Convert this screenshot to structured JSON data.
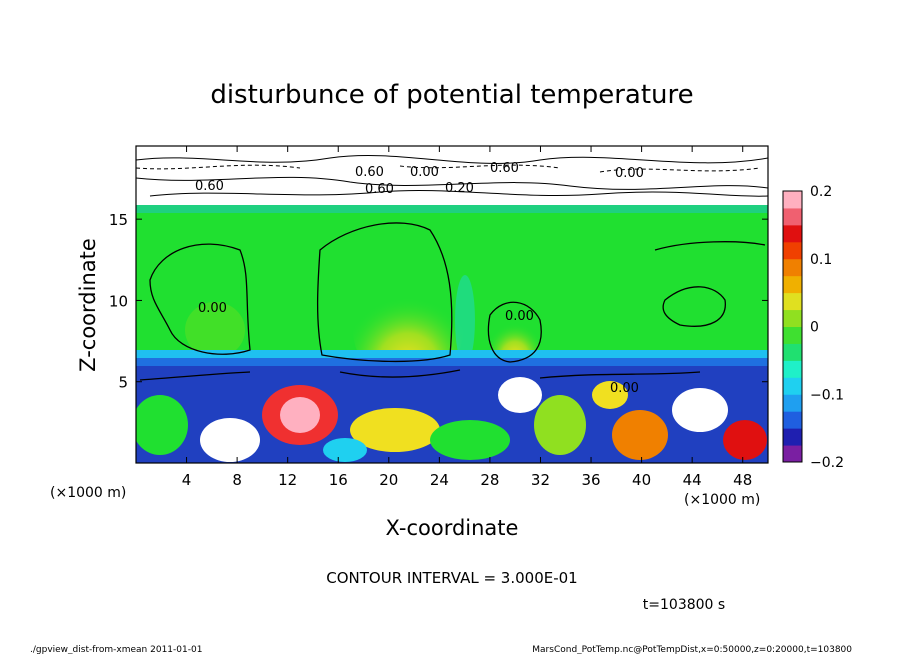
{
  "chart_data": {
    "type": "heatmap",
    "title": "disturbunce of potential temperature",
    "xlabel": "X-coordinate",
    "ylabel": "Z-coordinate",
    "x_unit": "(×1000 m)",
    "y_unit": "(×1000 m)",
    "xlim": [
      0,
      50
    ],
    "ylim": [
      0,
      19.5
    ],
    "x_ticks": [
      "4",
      "8",
      "12",
      "16",
      "20",
      "24",
      "28",
      "32",
      "36",
      "40",
      "44",
      "48"
    ],
    "y_ticks": [
      "5",
      "10",
      "15"
    ],
    "colorbar": {
      "range": [
        -0.2,
        0.2
      ],
      "tick_labels": [
        "0.2",
        "0.1",
        "0",
        "−0.1",
        "−0.2"
      ],
      "colors": [
        "#7a1fa2",
        "#1f1fb0",
        "#1f5fe0",
        "#1f9ff0",
        "#1fd0f0",
        "#1ff0c8",
        "#20e070",
        "#3fe030",
        "#90e020",
        "#e0e020",
        "#f0b000",
        "#f08000",
        "#f04000",
        "#e01010",
        "#f06070",
        "#ffb0c0"
      ]
    },
    "contour_labels": [
      "0.00",
      "0.00",
      "0.00",
      "0.60",
      "0.00",
      "0.60",
      "0.60",
      "0.20",
      "0.60",
      "0.00"
    ],
    "contour_interval": "CONTOUR INTERVAL = 3.000E-01",
    "time": "t=103800 s"
  },
  "footer": {
    "left": "./gpview_dist-from-xmean  2011-01-01",
    "right": "MarsCond_PotTemp.nc@PotTempDist,x=0:50000,z=0:20000,t=103800"
  }
}
